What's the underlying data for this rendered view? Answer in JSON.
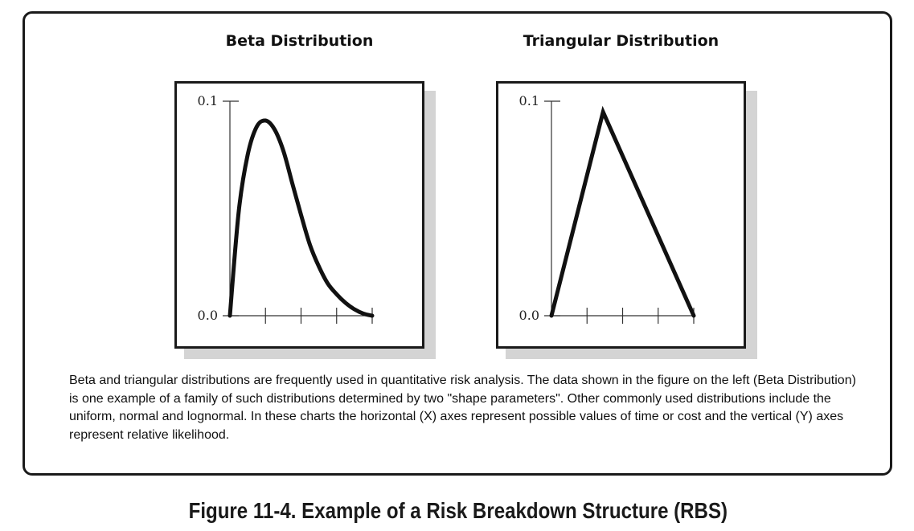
{
  "chart_data": [
    {
      "type": "line",
      "title": "Beta Distribution",
      "xlabel": "",
      "ylabel": "",
      "ylim": [
        0.0,
        0.1
      ],
      "y_tick_labels": [
        "0.1",
        "0.0"
      ],
      "x_tick_count": 4,
      "x": [
        0,
        0.25,
        0.5,
        0.75,
        1.0,
        1.25,
        1.5,
        1.75,
        2.0,
        2.25,
        2.5,
        2.75,
        3.0,
        3.25,
        3.5,
        3.75,
        4.0
      ],
      "y": [
        0.0,
        0.049,
        0.075,
        0.088,
        0.091,
        0.087,
        0.077,
        0.062,
        0.047,
        0.033,
        0.023,
        0.015,
        0.01,
        0.006,
        0.003,
        0.001,
        0.0
      ],
      "grid": false
    },
    {
      "type": "line",
      "title": "Triangular Distribution",
      "xlabel": "",
      "ylabel": "",
      "ylim": [
        0.0,
        0.1
      ],
      "y_tick_labels": [
        "0.1",
        "0.0"
      ],
      "x_tick_count": 4,
      "x": [
        0,
        1.45,
        4.0
      ],
      "y": [
        0.0,
        0.095,
        0.0
      ],
      "grid": false
    }
  ],
  "caption": "Beta and triangular distributions are frequently used in quantitative risk analysis. The data shown in the figure on the left (Beta Distribution) is one example of a family of such distributions determined by two \"shape parameters\". Other commonly used distributions include the uniform, normal and lognormal. In these charts the horizontal (X) axes represent possible values of time or cost and the vertical (Y) axes represent relative likelihood.",
  "figure_caption": "Figure 11-4. Example of a Risk Breakdown Structure (RBS)",
  "colors": {
    "line": "#111111",
    "frame": "#1a1a1a",
    "shadow": "#d4d4d4"
  }
}
